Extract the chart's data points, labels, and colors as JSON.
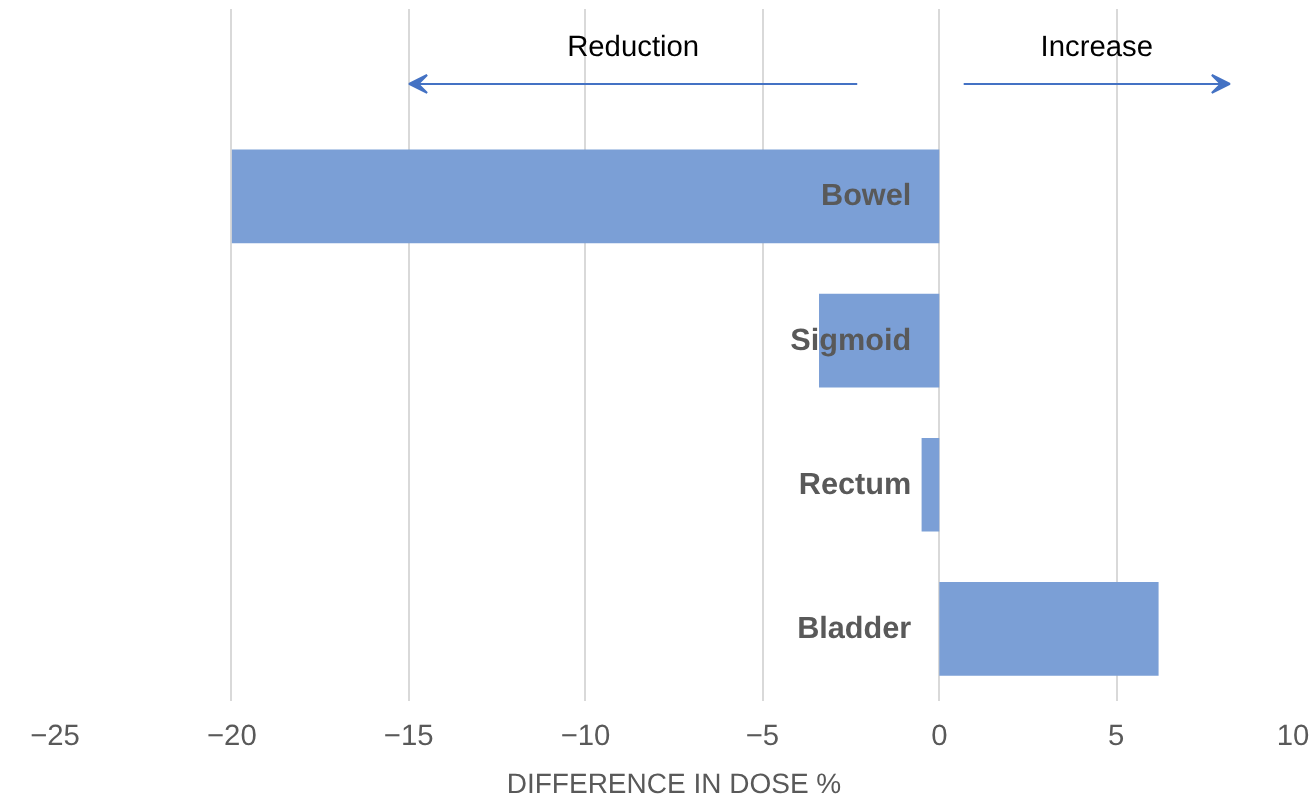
{
  "chart_data": {
    "type": "bar",
    "orientation": "horizontal",
    "categories": [
      "Bowel",
      "Sigmoid",
      "Rectum",
      "Bladder"
    ],
    "values": [
      -20,
      -3.4,
      -0.5,
      6.2
    ],
    "color": "#7b9fd6",
    "xlabel": "DIFFERENCE IN DOSE %",
    "xlim": [
      -25,
      10
    ],
    "xticks": [
      {
        "value": -25,
        "label": "−25"
      },
      {
        "value": -20,
        "label": "−20"
      },
      {
        "value": -15,
        "label": "−15"
      },
      {
        "value": -10,
        "label": "−10"
      },
      {
        "value": -5,
        "label": "−5"
      },
      0,
      5,
      10
    ],
    "grid": "x",
    "annotations": [
      "Reduction",
      "Increase"
    ]
  }
}
